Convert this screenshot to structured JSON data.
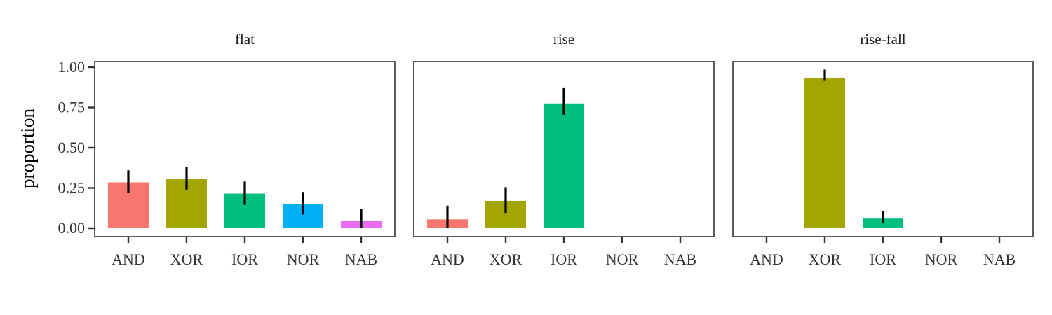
{
  "chart_data": {
    "type": "bar",
    "ylabel": "proportion",
    "xlabel": "",
    "ylim": [
      0,
      1
    ],
    "yticks": [
      "0.00",
      "0.25",
      "0.50",
      "0.75",
      "1.00"
    ],
    "categories": [
      "AND",
      "XOR",
      "IOR",
      "NOR",
      "NAB"
    ],
    "colors": {
      "AND": "#F8766D",
      "XOR": "#A3A500",
      "IOR": "#00BF7D",
      "NOR": "#00B0F6",
      "NAB": "#E76BF3"
    },
    "panels": [
      {
        "title": "flat",
        "values": [
          0.285,
          0.305,
          0.215,
          0.15,
          0.045
        ],
        "err_low": [
          0.22,
          0.24,
          0.145,
          0.085,
          0.0
        ],
        "err_high": [
          0.36,
          0.38,
          0.29,
          0.225,
          0.12
        ]
      },
      {
        "title": "rise",
        "values": [
          0.055,
          0.17,
          0.775,
          null,
          null
        ],
        "err_low": [
          0.0,
          0.095,
          0.705,
          null,
          null
        ],
        "err_high": [
          0.14,
          0.255,
          0.87,
          null,
          null
        ]
      },
      {
        "title": "rise-fall",
        "values": [
          null,
          0.935,
          0.06,
          null,
          null
        ],
        "err_low": [
          null,
          0.915,
          0.03,
          null,
          null
        ],
        "err_high": [
          null,
          0.985,
          0.105,
          null,
          null
        ]
      }
    ]
  }
}
